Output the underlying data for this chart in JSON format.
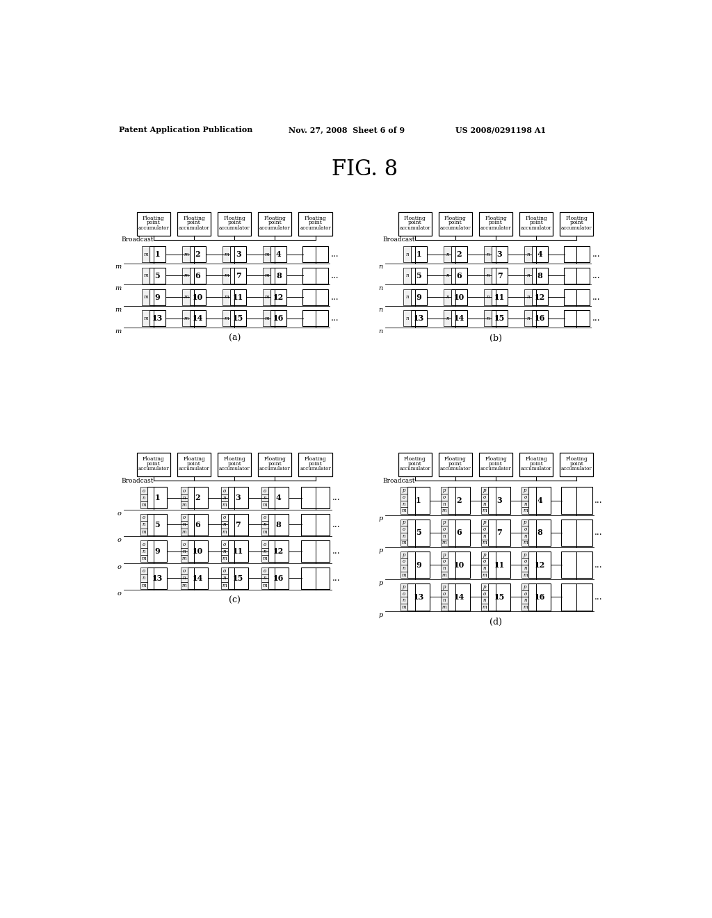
{
  "header_left": "Patent Application Publication",
  "header_mid": "Nov. 27, 2008  Sheet 6 of 9",
  "header_right": "US 2008/0291198 A1",
  "fig_title": "FIG. 8",
  "subdiagrams": [
    {
      "label": "(a)",
      "row_letter": "m",
      "side_letters": [
        "m"
      ],
      "ox": 50,
      "oy": 730
    },
    {
      "label": "(b)",
      "row_letter": "n",
      "side_letters": [
        "n"
      ],
      "ox": 530,
      "oy": 730
    },
    {
      "label": "(c)",
      "row_letter": "o",
      "side_letters": [
        "m",
        "n",
        "o"
      ],
      "ox": 50,
      "oy": 265
    },
    {
      "label": "(d)",
      "row_letter": "p",
      "side_letters": [
        "m",
        "n",
        "o",
        "p"
      ],
      "ox": 530,
      "oy": 265
    }
  ],
  "num_accum": 5,
  "grid_rows": 4,
  "grid_cols": 4
}
